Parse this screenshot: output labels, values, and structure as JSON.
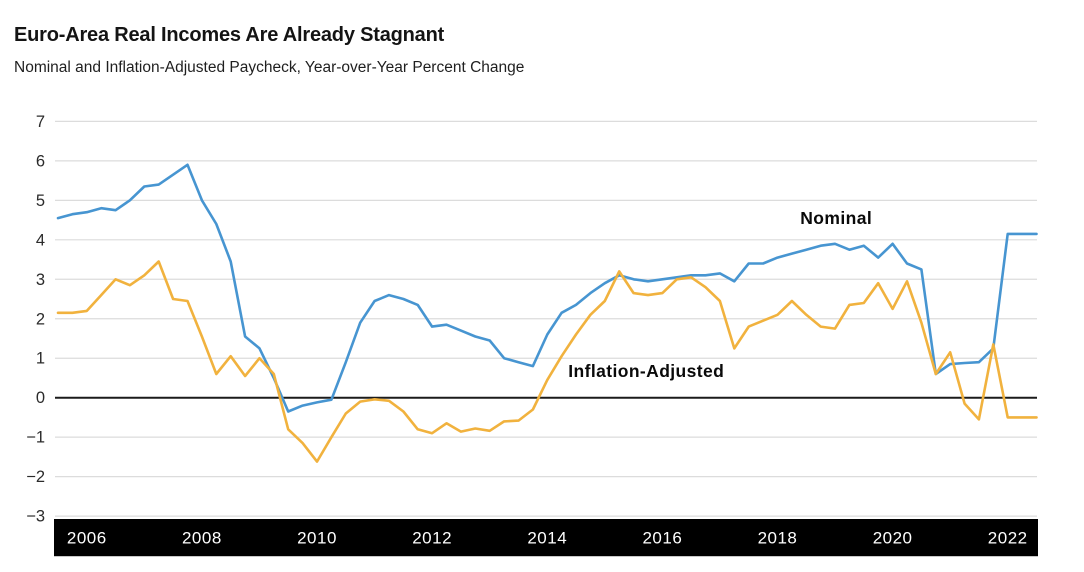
{
  "header": {
    "title": "Euro-Area Real Incomes Are Already Stagnant",
    "subtitle": "Nominal and Inflation-Adjusted Paycheck, Year-over-Year Percent Change"
  },
  "colors": {
    "nominal_line": "#4795d1",
    "real_line": "#f1b23e",
    "gridline": "#dcdcdc",
    "zero_line": "#1b1b1b",
    "axis_band_bg": "#000000",
    "axis_band_text": "#ffffff",
    "tick_text": "#2b2b2b",
    "annotation_text": "#0a0a0a",
    "band_bottom_edge": "#c8c8c8"
  },
  "chart_data": {
    "type": "line",
    "title": "Euro-Area Real Incomes Are Already Stagnant",
    "subtitle": "Nominal and Inflation-Adjusted Paycheck, Year-over-Year Percent Change",
    "xlabel": "",
    "ylabel": "",
    "xlim": [
      2005.5,
      2022.5
    ],
    "ylim": [
      -3,
      7
    ],
    "grid": true,
    "zero_baseline": true,
    "legend_position": "inline-annotations",
    "x_unit": "quarterly, year-fraction",
    "x_start": 2005.5,
    "x_step": 0.25,
    "x_ticks": [
      2006,
      2008,
      2010,
      2012,
      2014,
      2016,
      2018,
      2020,
      2022
    ],
    "y_ticks": [
      7,
      6,
      5,
      4,
      3,
      2,
      1,
      0,
      -1,
      -2,
      -3
    ],
    "series": [
      {
        "name": "Nominal",
        "values": [
          4.55,
          4.65,
          4.7,
          4.8,
          4.75,
          5.0,
          5.35,
          5.4,
          5.65,
          5.9,
          5.0,
          4.4,
          3.45,
          1.55,
          1.25,
          0.5,
          -0.35,
          -0.2,
          -0.12,
          -0.05,
          0.9,
          1.9,
          2.45,
          2.6,
          2.5,
          2.35,
          1.8,
          1.85,
          1.7,
          1.55,
          1.45,
          1.0,
          0.9,
          0.8,
          1.6,
          2.15,
          2.35,
          2.65,
          2.9,
          3.1,
          3.0,
          2.95,
          3.0,
          3.05,
          3.1,
          3.1,
          3.15,
          2.95,
          3.4,
          3.4,
          3.55,
          3.65,
          3.75,
          3.85,
          3.9,
          3.75,
          3.85,
          3.55,
          3.9,
          3.4,
          3.25,
          0.6,
          0.85,
          0.88,
          0.9,
          1.25,
          4.15,
          4.15,
          4.15
        ]
      },
      {
        "name": "Inflation-Adjusted",
        "values": [
          2.15,
          2.15,
          2.2,
          2.6,
          3.0,
          2.85,
          3.1,
          3.45,
          2.5,
          2.45,
          1.55,
          0.6,
          1.05,
          0.55,
          1.0,
          0.6,
          -0.8,
          -1.15,
          -1.62,
          -1.0,
          -0.4,
          -0.1,
          -0.04,
          -0.08,
          -0.35,
          -0.8,
          -0.9,
          -0.65,
          -0.86,
          -0.78,
          -0.84,
          -0.6,
          -0.58,
          -0.3,
          0.45,
          1.05,
          1.6,
          2.1,
          2.45,
          3.2,
          2.65,
          2.6,
          2.65,
          3.0,
          3.05,
          2.8,
          2.45,
          1.25,
          1.8,
          1.95,
          2.1,
          2.45,
          2.1,
          1.8,
          1.75,
          2.35,
          2.4,
          2.9,
          2.25,
          2.95,
          1.9,
          0.6,
          1.15,
          -0.15,
          -0.55,
          1.35,
          -0.5,
          -0.5,
          -0.5
        ]
      }
    ],
    "annotations": [
      {
        "text": "Nominal",
        "x": 2019.02,
        "y": 4.55
      },
      {
        "text": "Inflation-Adjusted",
        "x": 2015.72,
        "y": 0.67
      }
    ]
  }
}
